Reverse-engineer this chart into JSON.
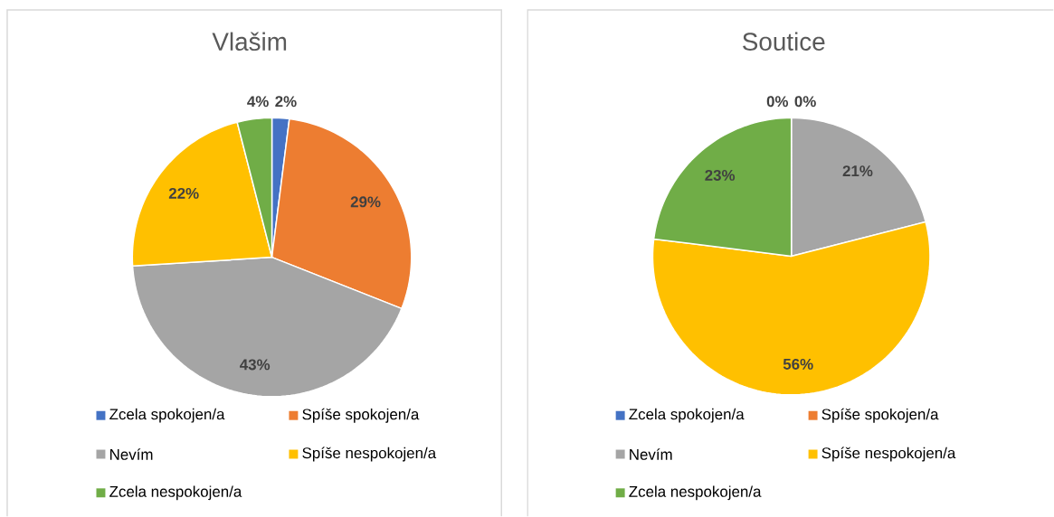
{
  "chart_data": [
    {
      "type": "pie",
      "title": "Vlašim",
      "categories": [
        "Zcela spokojen/a",
        "Spíše spokojen/a",
        "Nevím",
        "Spíše nespokojen/a",
        "Zcela nespokojen/a"
      ],
      "values": [
        2,
        29,
        43,
        22,
        4
      ],
      "value_labels": [
        "2%",
        "29%",
        "43%",
        "22%",
        "4%"
      ],
      "colors": [
        "#4472c4",
        "#ed7d31",
        "#a5a5a5",
        "#ffc000",
        "#70ad47"
      ],
      "legend": "bottom"
    },
    {
      "type": "pie",
      "title": "Soutice",
      "categories": [
        "Zcela spokojen/a",
        "Spíše spokojen/a",
        "Nevím",
        "Spíše nespokojen/a",
        "Zcela nespokojen/a"
      ],
      "values": [
        0,
        0,
        21,
        56,
        23
      ],
      "value_labels": [
        "0%",
        "0%",
        "21%",
        "56%",
        "23%"
      ],
      "colors": [
        "#4472c4",
        "#ed7d31",
        "#a5a5a5",
        "#ffc000",
        "#70ad47"
      ],
      "legend": "bottom"
    }
  ]
}
